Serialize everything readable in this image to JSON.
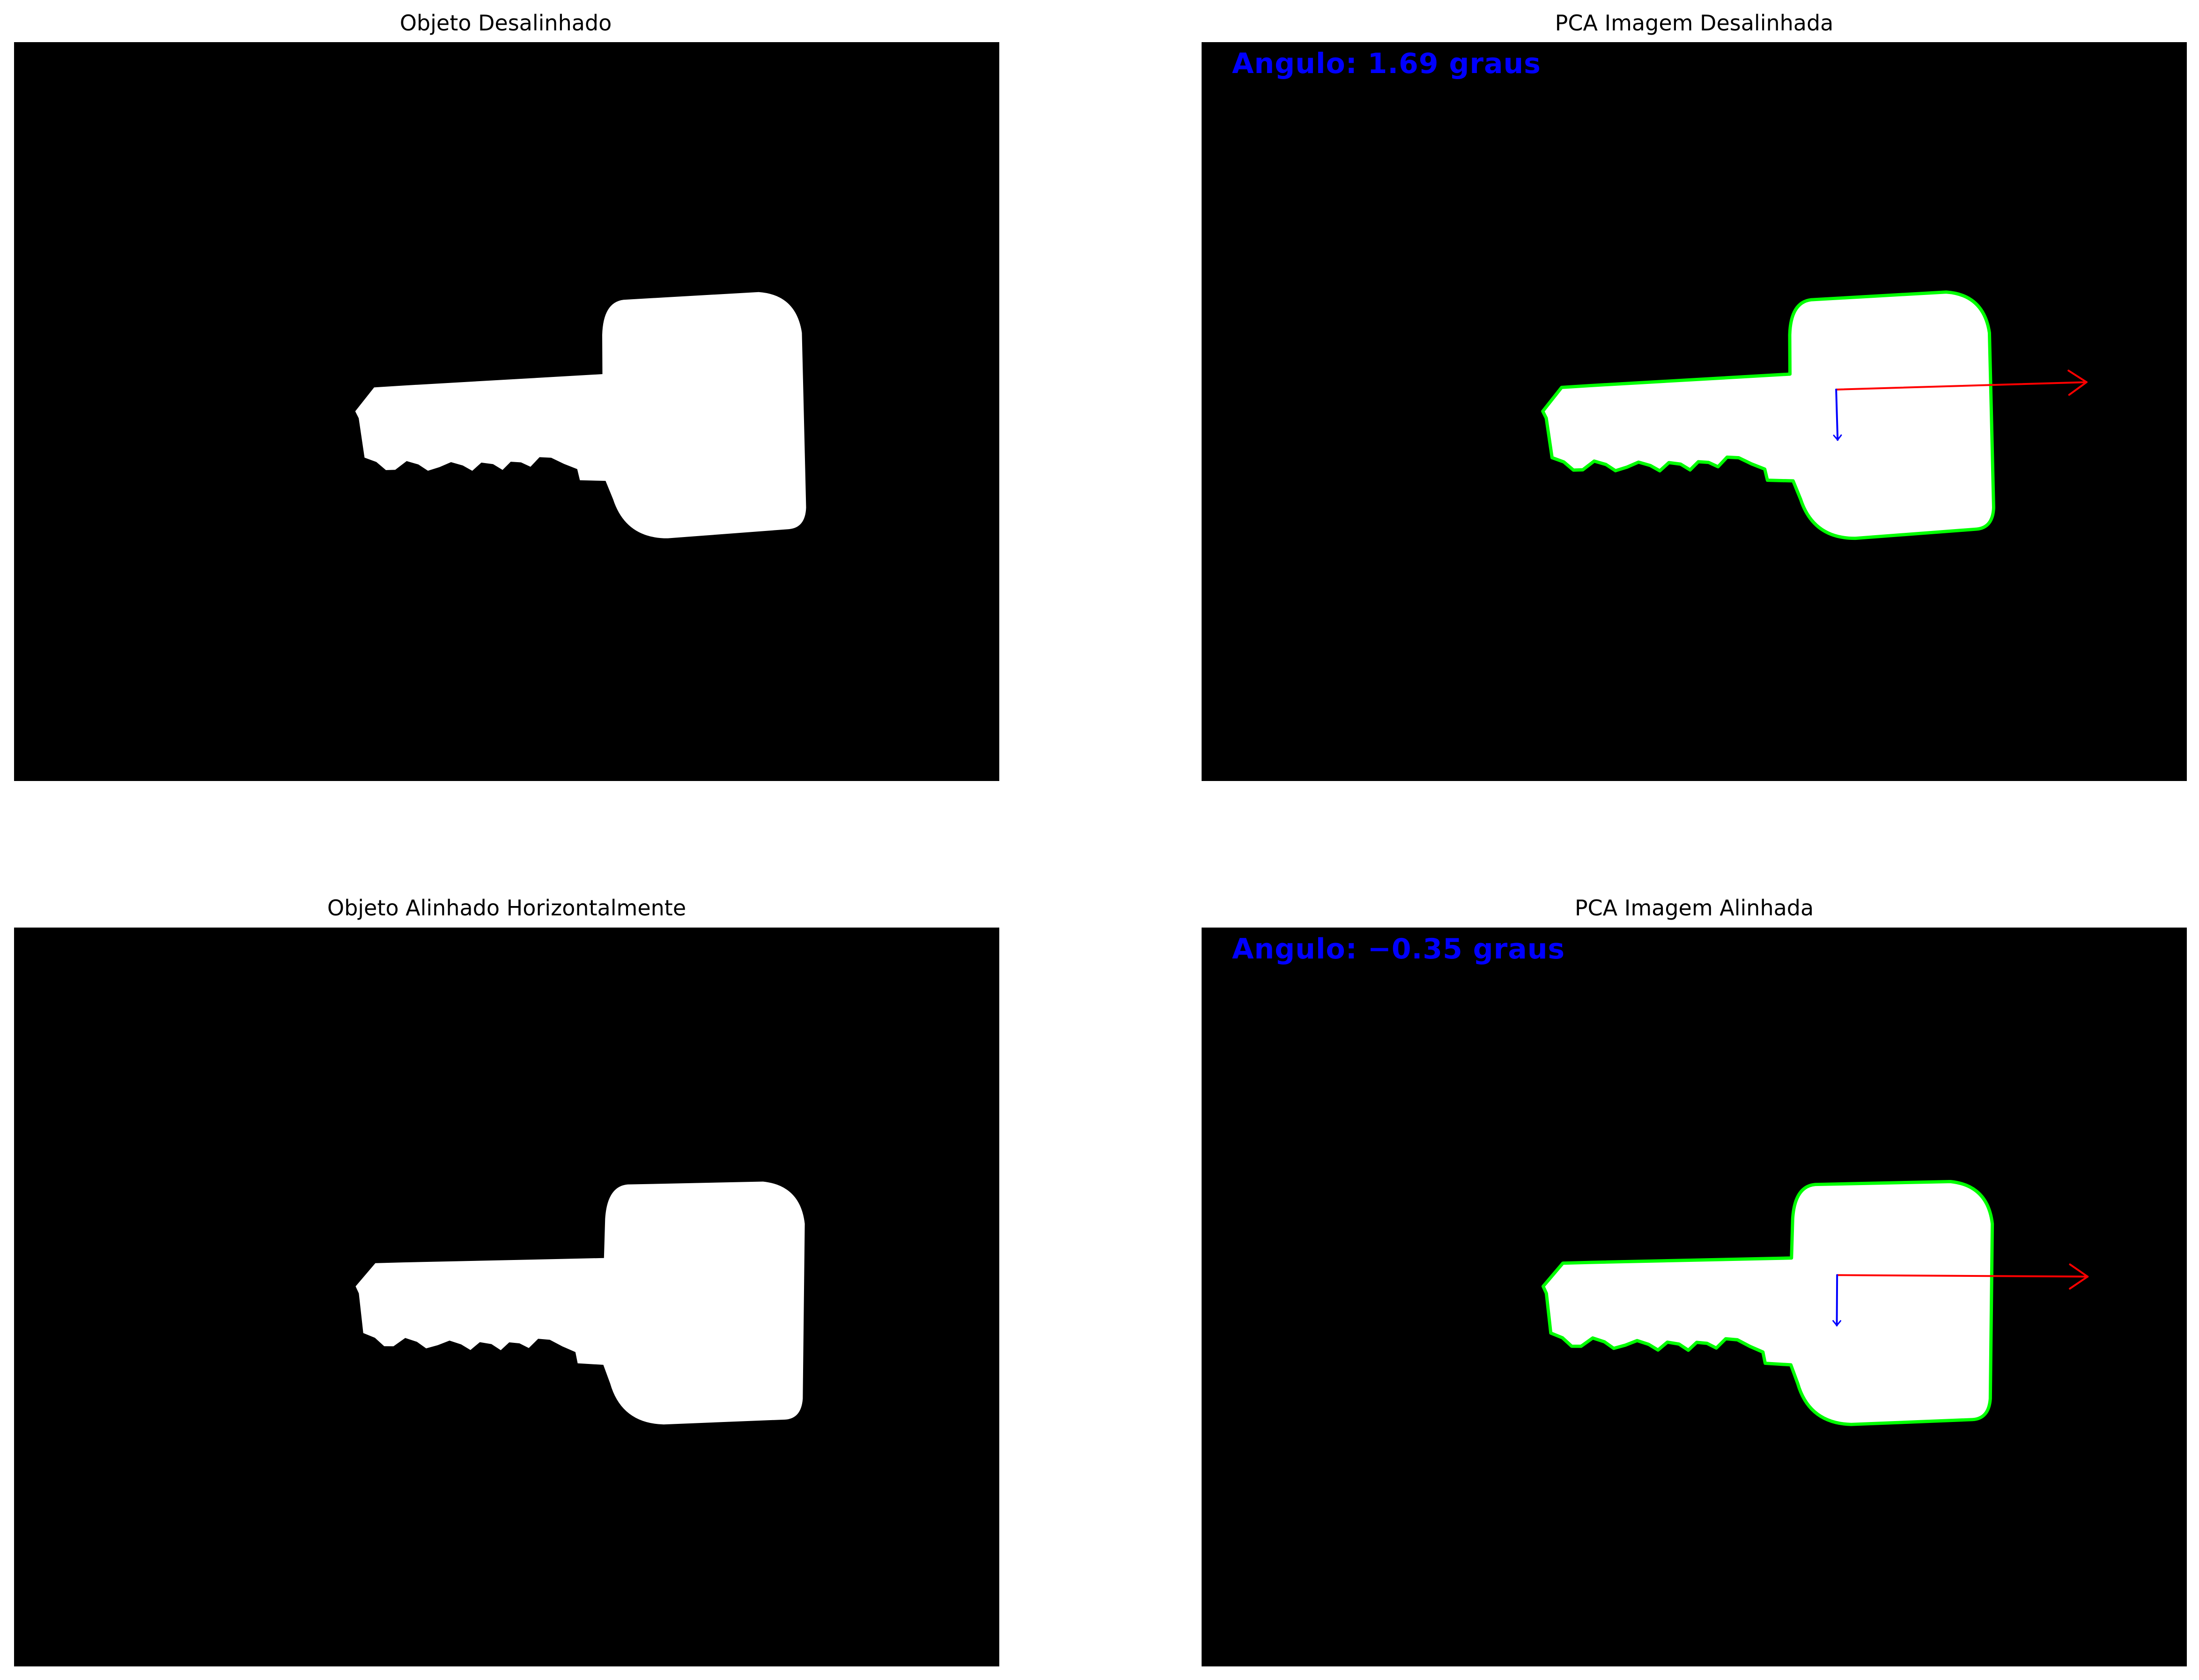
{
  "colors": {
    "background": "#000000",
    "object": "#ffffff",
    "contour": "#00ff00",
    "major_axis": "#ff0000",
    "minor_axis": "#0000ff",
    "angle_text": "#0000ff"
  },
  "panels": [
    {
      "title": "Objeto Desalinhado",
      "rotation_deg": 1.69,
      "show_pca": false
    },
    {
      "title": "PCA Imagem Desalinhada",
      "rotation_deg": 1.69,
      "show_pca": true,
      "angle_label": "Angulo: 1.69 graus"
    },
    {
      "title": "Objeto Alinhado Horizontalmente",
      "rotation_deg": -0.35,
      "show_pca": false
    },
    {
      "title": "PCA Imagem Alinhada",
      "rotation_deg": -0.35,
      "show_pca": true,
      "angle_label": "Angulo: −0.35 graus"
    }
  ]
}
